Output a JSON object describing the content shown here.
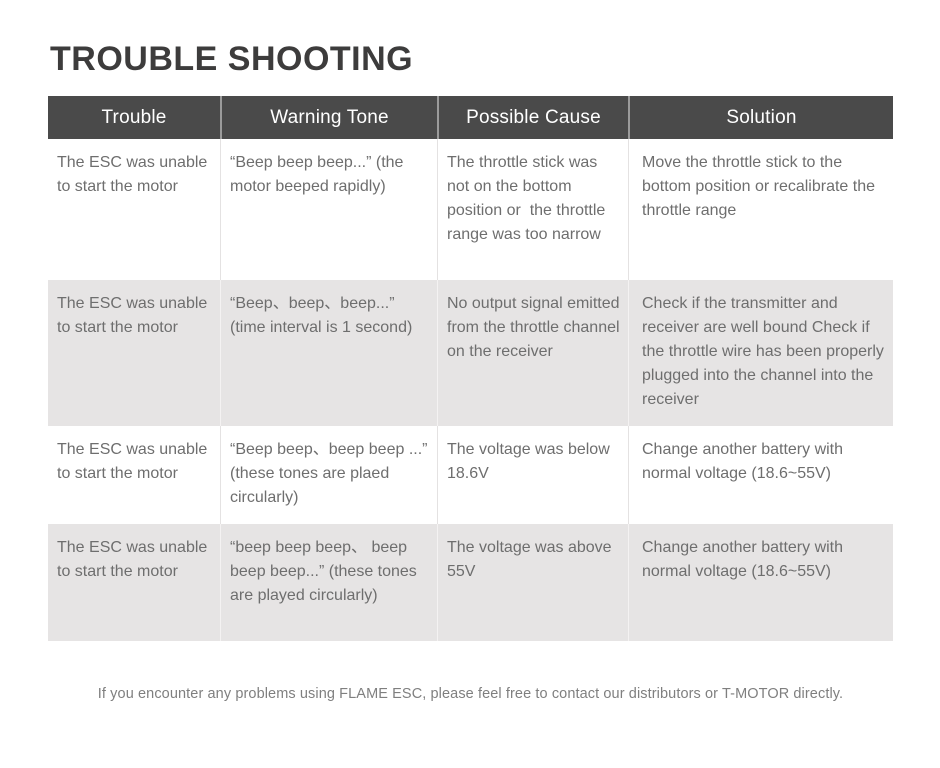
{
  "page": {
    "title": "TROUBLE SHOOTING",
    "footer": "If you encounter any problems using FLAME ESC, please feel free to contact our distributors or T-MOTOR directly."
  },
  "colors": {
    "header_bg": "#4a4a4a",
    "alt_row_bg": "#e6e4e4",
    "body_text": "#6e6e6e",
    "title_text": "#3d3c3c",
    "footer_text": "#7f7f7f",
    "header_text": "#ffffff"
  },
  "table": {
    "columns": [
      "Trouble",
      "Warning Tone",
      "Possible Cause",
      "Solution"
    ],
    "rows": [
      {
        "trouble": "The ESC was unable to start the motor",
        "warning_tone": "“Beep beep beep...” (the motor beeped rapidly)",
        "possible_cause": "The throttle stick was not on the bottom position or  the throttle range was too narrow",
        "solution": "Move the throttle stick to the bottom position or recalibrate the throttle range"
      },
      {
        "trouble": "The ESC was unable to start the motor",
        "warning_tone": "“Beep、beep、beep...” (time interval is 1 second)",
        "possible_cause": "No output signal emitted  from the throttle channel on the receiver",
        "solution": "Check if the transmitter and receiver are well bound Check if the throttle wire has been properly plugged into the channel into the receiver"
      },
      {
        "trouble": "The ESC was unable to start the motor",
        "warning_tone": "“Beep beep、beep beep ...” (these tones are plaed circularly)",
        "possible_cause": "The voltage was below 18.6V",
        "solution": "Change another battery with normal voltage (18.6~55V)"
      },
      {
        "trouble": "The ESC was unable to start the motor",
        "warning_tone": "“beep beep beep、 beep beep beep...” (these tones are played circularly)",
        "possible_cause": "The voltage was above 55V",
        "solution": "Change another battery with normal voltage (18.6~55V)"
      }
    ]
  }
}
